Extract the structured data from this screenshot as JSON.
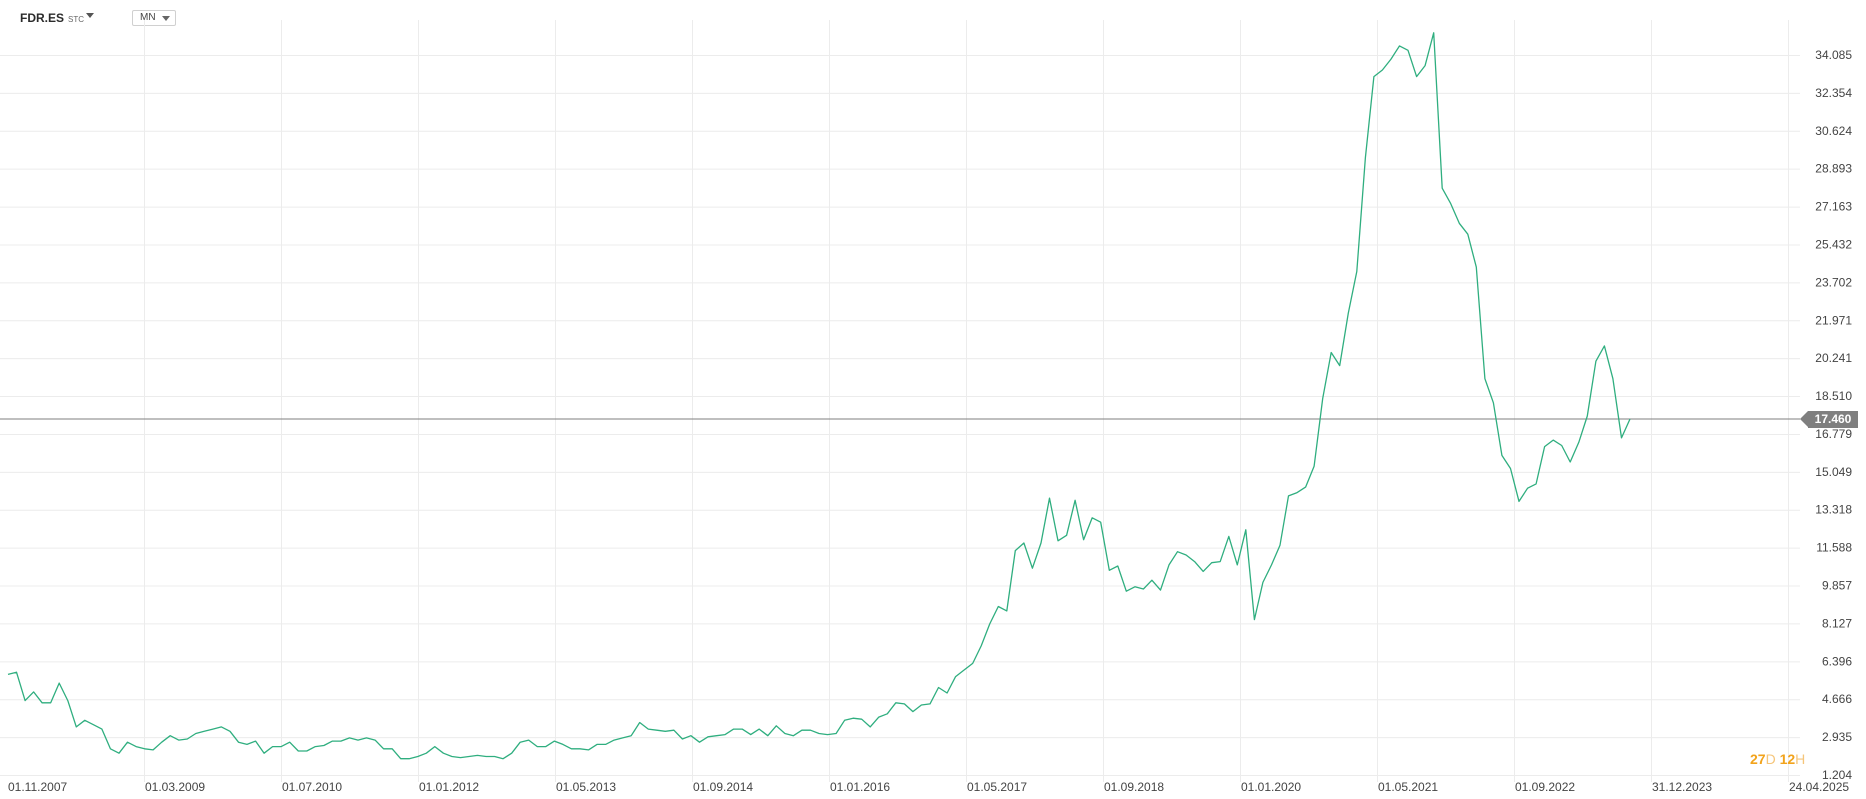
{
  "toolbar": {
    "symbol": "FDR.ES",
    "symbol_type": "STC",
    "interval": "MN"
  },
  "countdown": {
    "days": "27",
    "days_unit": "D",
    "hours": "12",
    "hours_unit": "H"
  },
  "current_price": "17.460",
  "colors": {
    "line": "#2fae7f",
    "grid": "#ececec",
    "price_line": "#7f7f7f",
    "axis_text": "#444444"
  },
  "chart_data": {
    "type": "line",
    "x_tick_labels": [
      "01.11.2007",
      "01.03.2009",
      "01.07.2010",
      "01.01.2012",
      "01.05.2013",
      "01.09.2014",
      "01.01.2016",
      "01.05.2017",
      "01.09.2018",
      "01.01.2020",
      "01.05.2021",
      "01.09.2022",
      "31.12.2023",
      "24.04.2025"
    ],
    "y_tick_labels": [
      "34.085",
      "32.354",
      "30.624",
      "28.893",
      "27.163",
      "25.432",
      "23.702",
      "21.971",
      "20.241",
      "18.510",
      "16.779",
      "15.049",
      "13.318",
      "11.588",
      "9.857",
      "8.127",
      "6.396",
      "4.666",
      "2.935",
      "1.204"
    ],
    "ylim": [
      1.204,
      34.085
    ],
    "last_price": 17.46,
    "grid": true,
    "series": [
      {
        "values": [
          5.8,
          5.9,
          4.6,
          5.0,
          4.5,
          4.5,
          5.4,
          4.6,
          3.4,
          3.7,
          3.5,
          3.3,
          2.4,
          2.2,
          2.7,
          2.5,
          2.4,
          2.35,
          2.7,
          3.0,
          2.8,
          2.85,
          3.1,
          3.2,
          3.3,
          3.4,
          3.2,
          2.7,
          2.6,
          2.75,
          2.2,
          2.5,
          2.5,
          2.7,
          2.3,
          2.3,
          2.5,
          2.55,
          2.75,
          2.75,
          2.9,
          2.8,
          2.9,
          2.8,
          2.4,
          2.4,
          1.95,
          1.95,
          2.05,
          2.2,
          2.5,
          2.2,
          2.05,
          2.0,
          2.05,
          2.1,
          2.05,
          2.05,
          1.95,
          2.2,
          2.7,
          2.8,
          2.5,
          2.5,
          2.75,
          2.6,
          2.4,
          2.4,
          2.35,
          2.6,
          2.6,
          2.8,
          2.9,
          3.0,
          3.6,
          3.3,
          3.25,
          3.2,
          3.25,
          2.85,
          3.0,
          2.7,
          2.95,
          3.0,
          3.05,
          3.3,
          3.3,
          3.05,
          3.3,
          3.0,
          3.45,
          3.1,
          3.0,
          3.25,
          3.25,
          3.1,
          3.05,
          3.1,
          3.7,
          3.8,
          3.75,
          3.4,
          3.85,
          4.0,
          4.5,
          4.45,
          4.1,
          4.4,
          4.45,
          5.2,
          4.95,
          5.7,
          6.0,
          6.3,
          7.1,
          8.1,
          8.9,
          8.7,
          11.45,
          11.8,
          10.65,
          11.8,
          13.85,
          11.9,
          12.15,
          13.75,
          11.95,
          12.95,
          12.75,
          10.55,
          10.75,
          9.6,
          9.8,
          9.7,
          10.1,
          9.65,
          10.8,
          11.4,
          11.25,
          10.95,
          10.5,
          10.9,
          10.95,
          12.1,
          10.8,
          12.4,
          8.3,
          10.0,
          10.8,
          11.7,
          13.95,
          14.1,
          14.35,
          15.3,
          18.4,
          20.5,
          19.9,
          22.3,
          24.2,
          29.4,
          33.1,
          33.4,
          33.9,
          34.5,
          34.3,
          33.1,
          33.6,
          35.1,
          28.0,
          27.3,
          26.4,
          25.9,
          24.4,
          19.3,
          18.2,
          15.8,
          15.2,
          13.7,
          14.3,
          14.5,
          16.2,
          16.5,
          16.25,
          15.5,
          16.4,
          17.6,
          20.1,
          20.8,
          19.3,
          16.6,
          17.46
        ]
      }
    ]
  }
}
